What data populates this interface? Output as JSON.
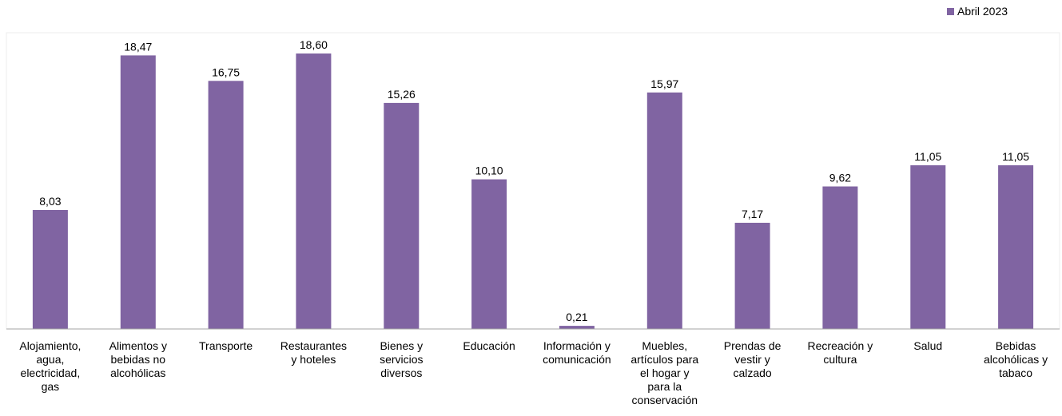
{
  "chart_data": {
    "type": "bar",
    "categories": [
      "Alojamiento, agua, electricidad, gas",
      "Alimentos y bebidas no alcohólicas",
      "Transporte",
      "Restaurantes y hoteles",
      "Bienes y servicios diversos",
      "Educación",
      "Información y comunicación",
      "Muebles, artículos para el hogar y para la conservación",
      "Prendas de vestir y calzado",
      "Recreación y cultura",
      "Salud",
      "Bebidas alcohólicas y tabaco"
    ],
    "category_lines": [
      [
        "Alojamiento,",
        "agua,",
        "electricidad,",
        "gas"
      ],
      [
        "Alimentos y",
        "bebidas no",
        "alcohólicas"
      ],
      [
        "Transporte"
      ],
      [
        "Restaurantes",
        "y hoteles"
      ],
      [
        "Bienes y",
        "servicios",
        "diversos"
      ],
      [
        "Educación"
      ],
      [
        "Información y",
        "comunicación"
      ],
      [
        "Muebles,",
        "artículos para",
        "el hogar y",
        "para la",
        "conservación"
      ],
      [
        "Prendas de",
        "vestir y",
        "calzado"
      ],
      [
        "Recreación y",
        "cultura"
      ],
      [
        "Salud"
      ],
      [
        "Bebidas",
        "alcohólicas y",
        "tabaco"
      ]
    ],
    "series": [
      {
        "name": "Abril 2023",
        "values": [
          8.03,
          18.47,
          16.75,
          18.6,
          15.26,
          10.1,
          0.21,
          15.97,
          7.17,
          9.62,
          11.05,
          11.05
        ],
        "labels": [
          "8,03",
          "18,47",
          "16,75",
          "18,60",
          "15,26",
          "10,10",
          "0,21",
          "15,97",
          "7,17",
          "9,62",
          "11,05",
          "11,05"
        ],
        "color": "#8064a2"
      }
    ],
    "title": "",
    "xlabel": "",
    "ylabel": "",
    "ylim": [
      0,
      20
    ],
    "grid": false,
    "legend_position": "top-right"
  },
  "colors": {
    "bar": "#8064a2",
    "axis": "#a6a6a6",
    "plot_border": "#d9d9d9"
  }
}
